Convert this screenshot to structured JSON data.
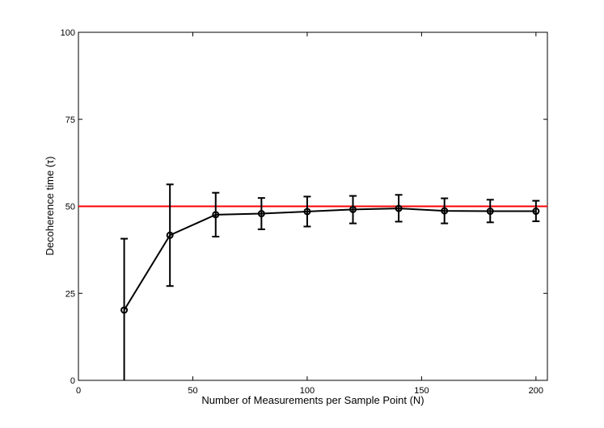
{
  "chart_data": {
    "type": "line",
    "xlabel": "Number of Measurements per Sample Point (N)",
    "ylabel": "Decoherence time (τ)",
    "xlim": [
      0,
      205
    ],
    "ylim": [
      0,
      100
    ],
    "xticks": [
      0,
      50,
      100,
      150,
      200
    ],
    "yticks": [
      0,
      25,
      50,
      75,
      100
    ],
    "grid": false,
    "legend": "none",
    "series": [
      {
        "marker": "circle",
        "color": "#000000",
        "x": [
          20,
          40,
          60,
          80,
          100,
          120,
          140,
          160,
          180,
          200
        ],
        "y": [
          20.2,
          41.7,
          47.6,
          47.9,
          48.5,
          49.1,
          49.4,
          48.7,
          48.6,
          48.6
        ],
        "error_lower": [
          0,
          27.1,
          41.3,
          43.4,
          44.2,
          45.1,
          45.6,
          45.1,
          45.4,
          45.7
        ],
        "error_upper": [
          40.7,
          56.3,
          53.9,
          52.4,
          52.8,
          53.0,
          53.3,
          52.3,
          51.9,
          51.6
        ]
      }
    ],
    "reference_line": {
      "y": 50,
      "color": "#ff0000"
    }
  }
}
